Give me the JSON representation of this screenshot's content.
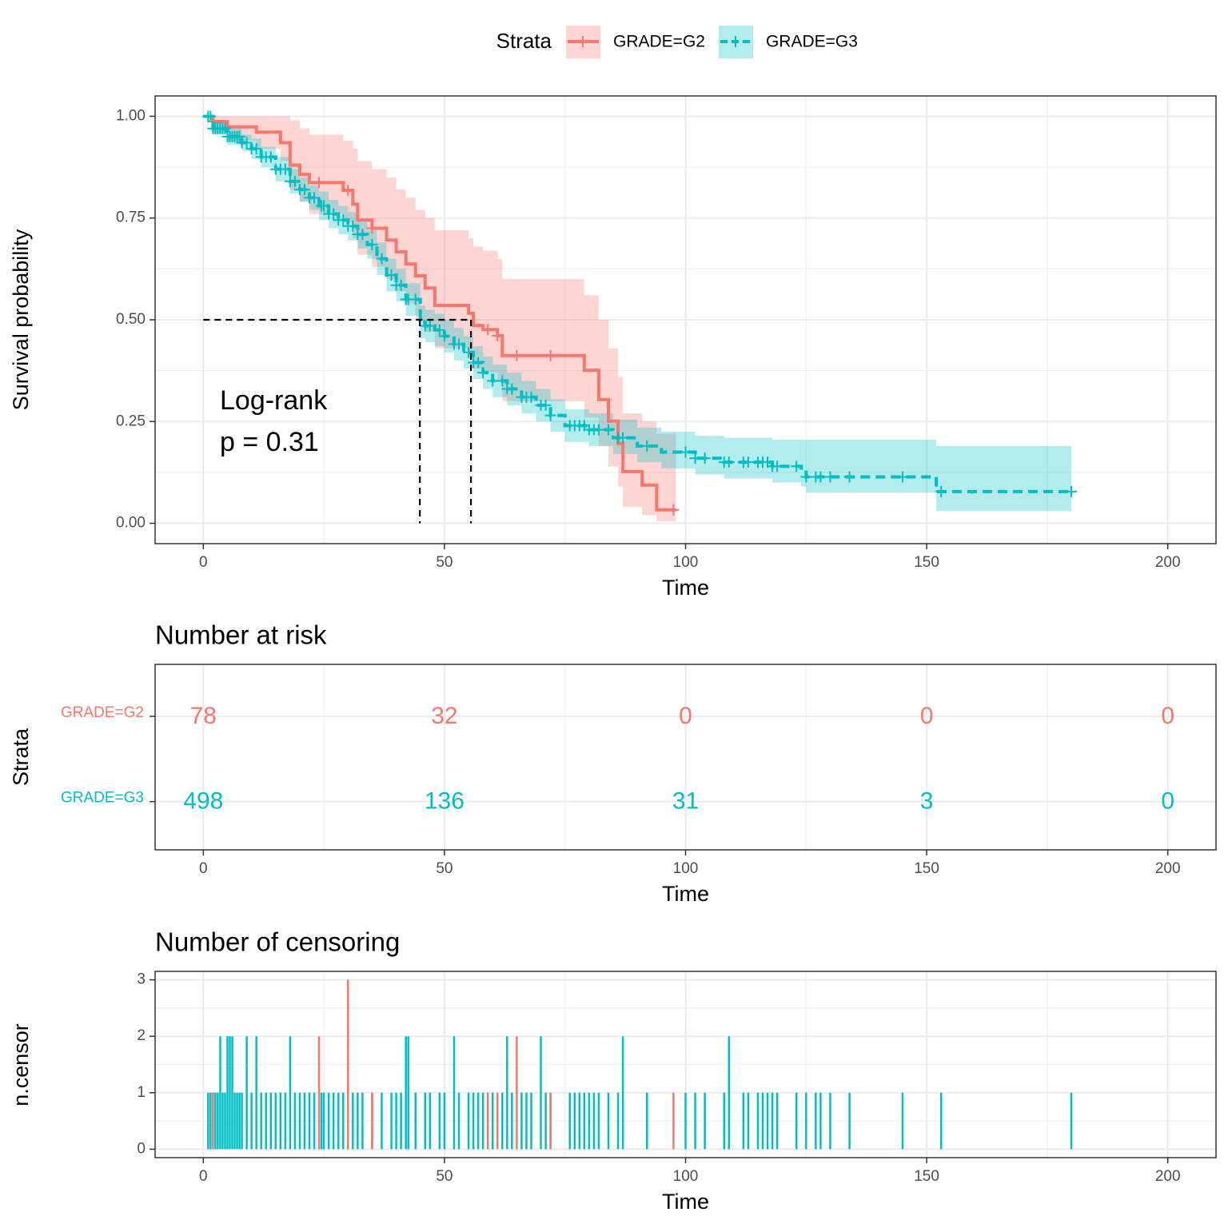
{
  "chart_data": [
    {
      "type": "step",
      "ylabel": "Survival probability",
      "xlabel": "Time",
      "legend_title": "Strata",
      "xlim": [
        -10,
        210
      ],
      "xticks": [
        0,
        50,
        100,
        150,
        200
      ],
      "ylim": [
        -0.05,
        1.05
      ],
      "yticks": [
        {
          "value": 0,
          "label": "0.00"
        },
        {
          "value": 0.25,
          "label": "0.25"
        },
        {
          "value": 0.5,
          "label": "0.50"
        },
        {
          "value": 0.75,
          "label": "0.75"
        },
        {
          "value": 1,
          "label": "1.00"
        }
      ],
      "grid": true,
      "annotations": [
        "Log-rank",
        "p = 0.31"
      ],
      "median_lines": {
        "y": 0.5,
        "x": [
          44.9,
          55.5
        ]
      },
      "series": [
        {
          "name": "GRADE=G2",
          "color": "#F8766D",
          "linestyle": "solid",
          "x": [
            0,
            2,
            5,
            11,
            16,
            18,
            20,
            22,
            29,
            31,
            32,
            35,
            38,
            40,
            42,
            44,
            46,
            48,
            55,
            56,
            58,
            61,
            62,
            79,
            82,
            84,
            86,
            87,
            91,
            94,
            98
          ],
          "values": [
            1,
            0.987,
            0.974,
            0.961,
            0.935,
            0.88,
            0.857,
            0.837,
            0.818,
            0.784,
            0.745,
            0.725,
            0.696,
            0.667,
            0.637,
            0.608,
            0.578,
            0.535,
            0.516,
            0.486,
            0.476,
            0.461,
            0.412,
            0.376,
            0.304,
            0.251,
            0.196,
            0.127,
            0.094,
            0.033,
            0.033
          ],
          "upper": [
            1,
            1,
            1,
            1,
            1,
            0.99,
            0.97,
            0.955,
            0.94,
            0.92,
            0.89,
            0.87,
            0.85,
            0.82,
            0.8,
            0.77,
            0.75,
            0.72,
            0.7,
            0.68,
            0.67,
            0.65,
            0.6,
            0.56,
            0.5,
            0.43,
            0.36,
            0.27,
            0.25,
            0.22,
            0.22
          ],
          "lower": [
            1,
            0.96,
            0.94,
            0.92,
            0.89,
            0.82,
            0.79,
            0.76,
            0.74,
            0.7,
            0.66,
            0.63,
            0.6,
            0.57,
            0.54,
            0.5,
            0.47,
            0.43,
            0.41,
            0.38,
            0.37,
            0.35,
            0.3,
            0.26,
            0.19,
            0.14,
            0.09,
            0.04,
            0.02,
            0.005,
            0.005
          ]
        },
        {
          "name": "GRADE=G3",
          "color": "#00BFC4",
          "linestyle": "dashed",
          "x": [
            0,
            2,
            5,
            8,
            10,
            12,
            15,
            18,
            20,
            22,
            24,
            26,
            28,
            30,
            32,
            34,
            36,
            38,
            40,
            42,
            45,
            46,
            48,
            50,
            52,
            54,
            56,
            58,
            60,
            63,
            66,
            69,
            72,
            75,
            80,
            85,
            90,
            95,
            102,
            108,
            118,
            124,
            125,
            152,
            180
          ],
          "values": [
            1,
            0.97,
            0.95,
            0.935,
            0.92,
            0.9,
            0.87,
            0.84,
            0.82,
            0.8,
            0.78,
            0.76,
            0.745,
            0.73,
            0.71,
            0.685,
            0.65,
            0.61,
            0.585,
            0.55,
            0.495,
            0.485,
            0.475,
            0.46,
            0.44,
            0.42,
            0.395,
            0.37,
            0.35,
            0.33,
            0.31,
            0.29,
            0.265,
            0.24,
            0.23,
            0.21,
            0.19,
            0.175,
            0.16,
            0.15,
            0.14,
            0.13,
            0.114,
            0.078,
            0.078
          ],
          "upper": [
            1,
            0.985,
            0.97,
            0.955,
            0.945,
            0.925,
            0.9,
            0.87,
            0.85,
            0.83,
            0.815,
            0.795,
            0.78,
            0.765,
            0.745,
            0.72,
            0.69,
            0.65,
            0.625,
            0.59,
            0.535,
            0.525,
            0.515,
            0.5,
            0.48,
            0.46,
            0.435,
            0.41,
            0.39,
            0.37,
            0.35,
            0.33,
            0.305,
            0.28,
            0.27,
            0.255,
            0.235,
            0.225,
            0.215,
            0.21,
            0.205,
            0.205,
            0.205,
            0.19,
            0.19
          ],
          "lower": [
            1,
            0.955,
            0.93,
            0.915,
            0.895,
            0.875,
            0.84,
            0.81,
            0.79,
            0.77,
            0.745,
            0.725,
            0.71,
            0.695,
            0.675,
            0.65,
            0.61,
            0.57,
            0.545,
            0.51,
            0.455,
            0.445,
            0.435,
            0.42,
            0.4,
            0.38,
            0.355,
            0.33,
            0.31,
            0.29,
            0.27,
            0.25,
            0.225,
            0.2,
            0.19,
            0.17,
            0.15,
            0.135,
            0.12,
            0.11,
            0.1,
            0.09,
            0.075,
            0.03,
            0.03
          ]
        }
      ]
    },
    {
      "type": "risk_table",
      "title": "Number at risk",
      "ylabel": "Strata",
      "xlabel": "Time",
      "xlim": [
        -10,
        210
      ],
      "xticks": [
        0,
        50,
        100,
        150,
        200
      ],
      "x": [
        0,
        50,
        100,
        150,
        200
      ],
      "series": [
        {
          "name": "GRADE=G2",
          "color": "#F8766D",
          "values": [
            78,
            32,
            0,
            0,
            0
          ]
        },
        {
          "name": "GRADE=G3",
          "color": "#00BFC4",
          "values": [
            498,
            136,
            31,
            3,
            0
          ]
        }
      ]
    },
    {
      "type": "bar",
      "title": "Number of censoring",
      "ylabel": "n.censor",
      "xlabel": "Time",
      "xlim": [
        -10,
        210
      ],
      "xticks": [
        0,
        50,
        100,
        150,
        200
      ],
      "ylim": [
        -0.15,
        3.15
      ],
      "yticks": [
        0,
        1,
        2,
        3
      ],
      "grid": true,
      "series": [
        {
          "name": "GRADE=G3",
          "color": "#00BFC4",
          "x": [
            1,
            1.5,
            2,
            2.5,
            3,
            3.5,
            4,
            4.5,
            5,
            5.5,
            6,
            6.5,
            7,
            7.5,
            8,
            9,
            10,
            11,
            12,
            13,
            14,
            15,
            16,
            17,
            18,
            19,
            20,
            21,
            22,
            23,
            24.5,
            25,
            26,
            27,
            28,
            29,
            30,
            31,
            32,
            33,
            35,
            37,
            39,
            40,
            41,
            42,
            42.5,
            44,
            46,
            47,
            49,
            50,
            52,
            53,
            55,
            56,
            57,
            58,
            60,
            62,
            63,
            64,
            66,
            67,
            68,
            70,
            71,
            72,
            76,
            77,
            78,
            79,
            80,
            81,
            82,
            84,
            86,
            87,
            92,
            100,
            102,
            104,
            108,
            109,
            112,
            113,
            115,
            116,
            117,
            118,
            119,
            123,
            125,
            127,
            128,
            130,
            134,
            145,
            153,
            180
          ],
          "values": [
            1,
            1,
            1,
            1,
            1,
            2,
            1,
            1,
            2,
            2,
            2,
            1,
            1,
            1,
            1,
            2,
            1,
            2,
            1,
            1,
            1,
            1,
            1,
            1,
            2,
            1,
            1,
            1,
            1,
            1,
            1,
            1,
            1,
            1,
            1,
            1,
            1,
            1,
            1,
            1,
            1,
            1,
            1,
            1,
            1,
            2,
            2,
            1,
            1,
            1,
            1,
            1,
            2,
            1,
            1,
            1,
            1,
            1,
            1,
            1,
            2,
            1,
            1,
            1,
            1,
            2,
            1,
            1,
            1,
            1,
            1,
            1,
            1,
            1,
            1,
            1,
            1,
            2,
            1,
            1,
            1,
            1,
            1,
            2,
            1,
            1,
            1,
            1,
            1,
            1,
            1,
            1,
            1,
            1,
            1,
            1,
            1,
            1,
            1,
            1
          ]
        },
        {
          "name": "GRADE=G2",
          "color": "#F8766D",
          "x": [
            2,
            24,
            30,
            35,
            59,
            61,
            65,
            72,
            97.5
          ],
          "values": [
            1,
            2,
            3,
            1,
            1,
            1,
            2,
            1,
            1
          ]
        }
      ]
    }
  ]
}
